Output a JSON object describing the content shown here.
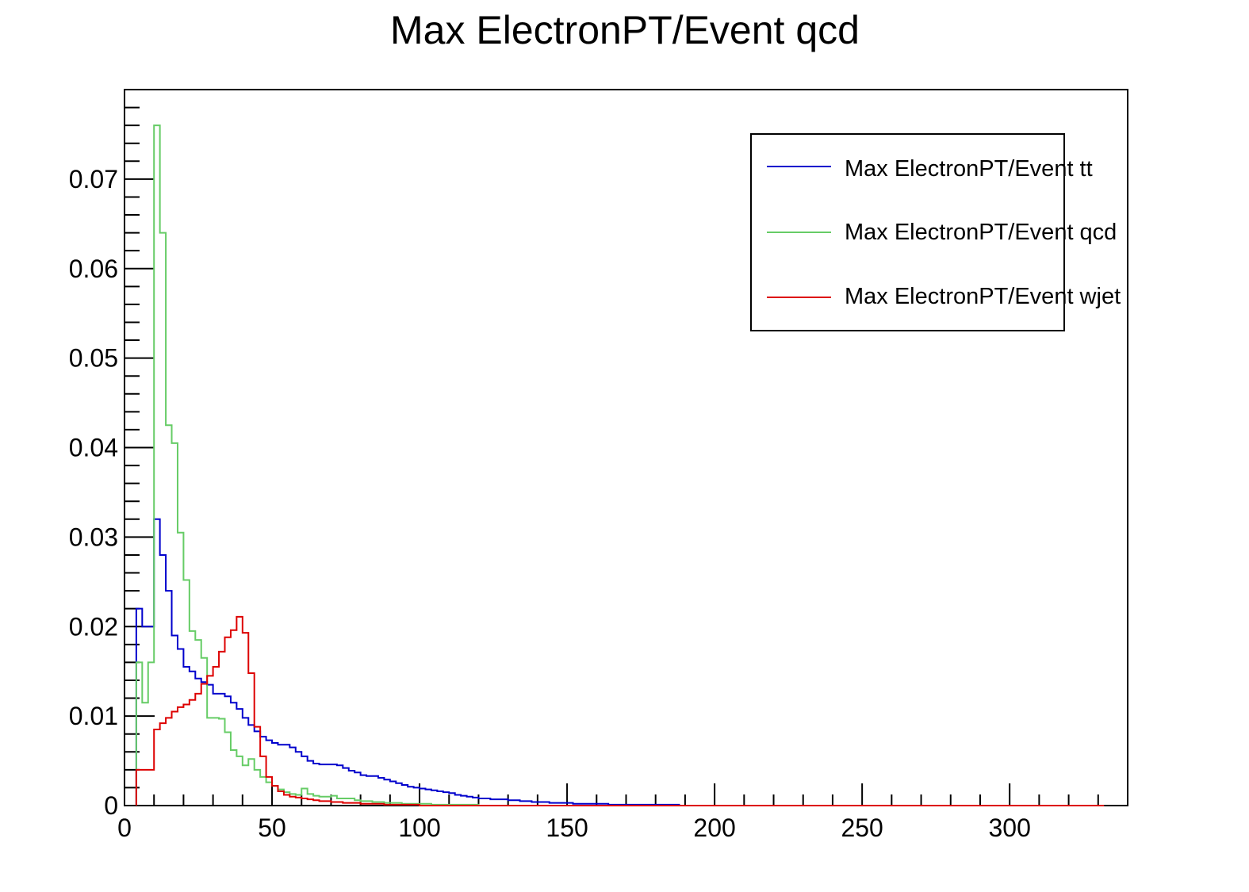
{
  "chart_data": {
    "type": "line",
    "title": "Max ElectronPT/Event qcd",
    "xlabel": "",
    "ylabel": "",
    "xlim": [
      0,
      340
    ],
    "ylim": [
      0,
      0.08
    ],
    "x_ticks": [
      0,
      50,
      100,
      150,
      200,
      250,
      300
    ],
    "x_tick_labels": [
      "0",
      "50",
      "100",
      "150",
      "200",
      "250",
      "300"
    ],
    "y_ticks": [
      0,
      0.01,
      0.02,
      0.03,
      0.04,
      0.05,
      0.06,
      0.07
    ],
    "y_tick_labels": [
      "0",
      "0.01",
      "0.02",
      "0.03",
      "0.04",
      "0.05",
      "0.06",
      "0.07"
    ],
    "grid": false,
    "legend_position": "top-right",
    "bin_width": 2,
    "x_start": 4,
    "series": [
      {
        "name": "Max ElectronPT/Event tt",
        "color": "#0000cc",
        "values": [
          0.022,
          0.02,
          0.02,
          0.032,
          0.028,
          0.024,
          0.019,
          0.0175,
          0.0155,
          0.015,
          0.0142,
          0.0138,
          0.0135,
          0.0125,
          0.0125,
          0.0122,
          0.0115,
          0.0108,
          0.0098,
          0.009,
          0.0083,
          0.0077,
          0.0073,
          0.007,
          0.0068,
          0.0068,
          0.0065,
          0.006,
          0.0055,
          0.005,
          0.0047,
          0.0046,
          0.0046,
          0.0046,
          0.0045,
          0.0042,
          0.0039,
          0.0037,
          0.0034,
          0.0033,
          0.0033,
          0.0031,
          0.0029,
          0.0027,
          0.0025,
          0.0023,
          0.0021,
          0.002,
          0.0019,
          0.0018,
          0.0017,
          0.0016,
          0.0015,
          0.0014,
          0.0012,
          0.0011,
          0.001,
          0.0009,
          0.0008,
          0.0008,
          0.0007,
          0.0007,
          0.0007,
          0.0006,
          0.0006,
          0.0005,
          0.0005,
          0.0004,
          0.0004,
          0.0004,
          0.0003,
          0.0003,
          0.0003,
          0.0003,
          0.0002,
          0.0002,
          0.0002,
          0.0002,
          0.0002,
          0.0002,
          0.0001,
          0.0001,
          0.0001,
          0.0001,
          0.0001,
          0.0001,
          0.0001,
          0.0001,
          0.0001,
          0.0001,
          0.0001,
          0.0001,
          0,
          0,
          0,
          0,
          0,
          0,
          0,
          0,
          0,
          0,
          0,
          0,
          0,
          0,
          0,
          0,
          0,
          0,
          0,
          0,
          0,
          0,
          0,
          0,
          0,
          0,
          0,
          0,
          0,
          0,
          0,
          0,
          0,
          0,
          0,
          0,
          0,
          0,
          0,
          0,
          0,
          0,
          0,
          0,
          0,
          0,
          0,
          0,
          0,
          0,
          0,
          0,
          0,
          0,
          0,
          0,
          0,
          0,
          0,
          0,
          0,
          0,
          0,
          0,
          0,
          0,
          0,
          0,
          0,
          0
        ]
      },
      {
        "name": "Max ElectronPT/Event qcd",
        "color": "#66cc66",
        "values": [
          0.016,
          0.0115,
          0.016,
          0.076,
          0.064,
          0.0425,
          0.0405,
          0.0305,
          0.0252,
          0.0195,
          0.0185,
          0.0165,
          0.0098,
          0.0098,
          0.0097,
          0.0082,
          0.0062,
          0.0055,
          0.0045,
          0.0052,
          0.004,
          0.0032,
          0.0026,
          0.0022,
          0.0018,
          0.0015,
          0.0013,
          0.0012,
          0.0019,
          0.0013,
          0.0011,
          0.001,
          0.001,
          0.0011,
          0.0008,
          0.0008,
          0.0008,
          0.0006,
          0.0005,
          0.0005,
          0.0004,
          0.0004,
          0.0003,
          0.0003,
          0.0003,
          0.0002,
          0.0002,
          0.0002,
          0.0002,
          0.0002,
          0.0001,
          0.0001,
          0.0001,
          0.0001,
          0.0001,
          0.0001,
          0.0001,
          0.0001,
          0,
          0,
          0,
          0,
          0,
          0,
          0,
          0,
          0,
          0,
          0,
          0,
          0,
          0,
          0,
          0,
          0,
          0,
          0,
          0,
          0,
          0,
          0,
          0,
          0,
          0,
          0,
          0,
          0,
          0,
          0,
          0,
          0,
          0,
          0,
          0,
          0,
          0,
          0,
          0,
          0,
          0,
          0,
          0,
          0,
          0,
          0,
          0,
          0,
          0,
          0,
          0,
          0,
          0,
          0,
          0,
          0,
          0,
          0,
          0,
          0,
          0,
          0,
          0,
          0,
          0,
          0,
          0,
          0,
          0,
          0,
          0,
          0,
          0,
          0,
          0,
          0,
          0,
          0,
          0,
          0,
          0,
          0,
          0,
          0,
          0,
          0,
          0,
          0,
          0,
          0,
          0,
          0,
          0,
          0,
          0,
          0,
          0,
          0,
          0,
          0,
          0,
          0,
          0,
          0,
          0
        ]
      },
      {
        "name": "Max ElectronPT/Event wjet",
        "color": "#dd0000",
        "values": [
          0.004,
          0.004,
          0.004,
          0.0085,
          0.0092,
          0.0098,
          0.0105,
          0.011,
          0.0113,
          0.0118,
          0.0125,
          0.0136,
          0.0145,
          0.0155,
          0.0172,
          0.0188,
          0.0196,
          0.0211,
          0.0193,
          0.0148,
          0.0088,
          0.0055,
          0.0032,
          0.0022,
          0.0016,
          0.0012,
          0.001,
          0.0009,
          0.0008,
          0.0007,
          0.0006,
          0.0005,
          0.0005,
          0.0004,
          0.0004,
          0.0003,
          0.0003,
          0.0003,
          0.0002,
          0.0002,
          0.0002,
          0.0002,
          0.0001,
          0.0001,
          0.0001,
          0.0001,
          0.0001,
          0.0001,
          0,
          0,
          0,
          0,
          0,
          0,
          0,
          0,
          0,
          0,
          0,
          0,
          0,
          0,
          0,
          0,
          0,
          0,
          0,
          0,
          0,
          0,
          0,
          0,
          0,
          0,
          0,
          0,
          0,
          0,
          0,
          0,
          0,
          0,
          0,
          0,
          0,
          0,
          0,
          0,
          0,
          0,
          0,
          0,
          0,
          0,
          0,
          0,
          0,
          0,
          0,
          0,
          0,
          0,
          0,
          0,
          0,
          0,
          0,
          0,
          0,
          0,
          0,
          0,
          0,
          0,
          0,
          0,
          0,
          0,
          0,
          0,
          0,
          0,
          0,
          0,
          0,
          0,
          0,
          0,
          0,
          0,
          0,
          0,
          0,
          0,
          0,
          0,
          0,
          0,
          0,
          0,
          0,
          0,
          0,
          0,
          0,
          0,
          0,
          0,
          0,
          0,
          0,
          0,
          0,
          0,
          0,
          0,
          0,
          0,
          0,
          0,
          0,
          0,
          0,
          0
        ]
      }
    ]
  }
}
